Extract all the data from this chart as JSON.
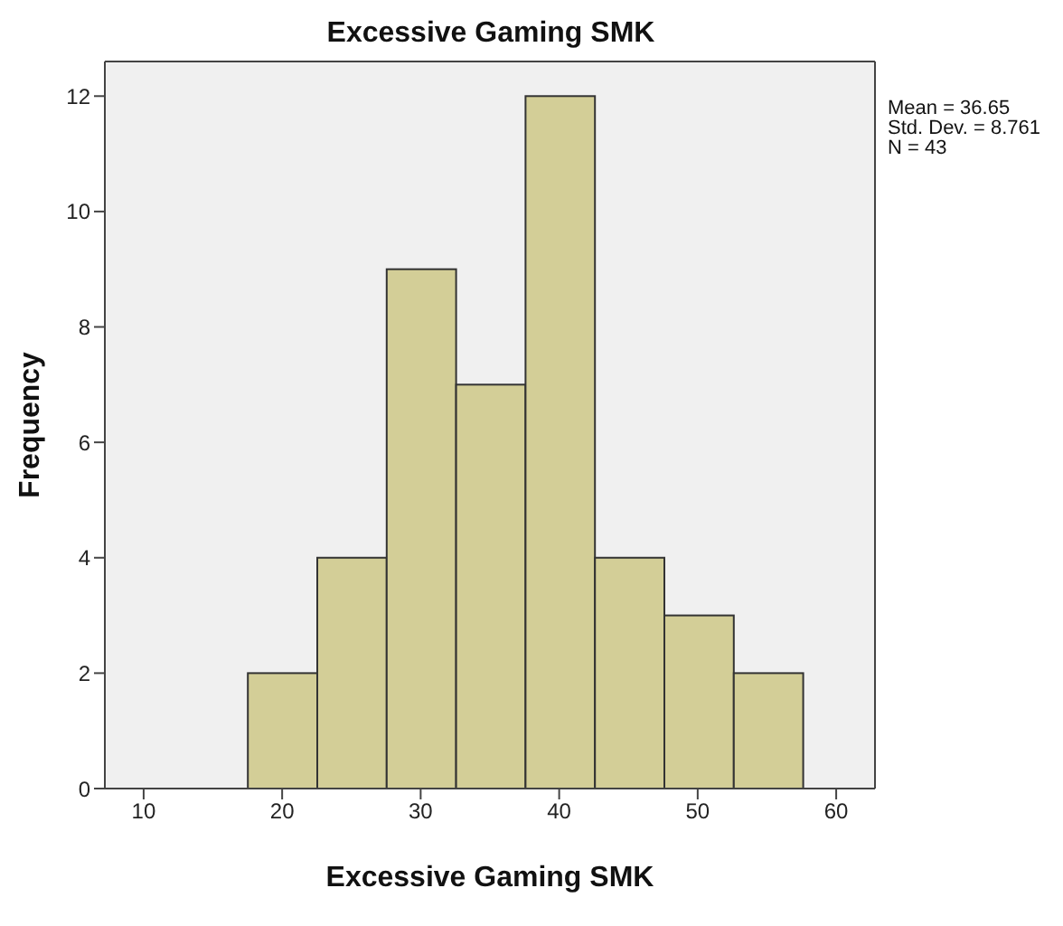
{
  "chart_data": {
    "type": "histogram",
    "title": "Excessive Gaming SMK",
    "xlabel": "Excessive Gaming SMK",
    "ylabel": "Frequency",
    "bins": [
      17.5,
      22.5,
      27.5,
      32.5,
      37.5,
      42.5,
      47.5,
      52.5,
      57.5
    ],
    "values": [
      2,
      4,
      9,
      7,
      12,
      4,
      3,
      2
    ],
    "color": "#d3ce97",
    "xlim": [
      7.2,
      62.8
    ],
    "xticks": [
      10,
      20,
      30,
      40,
      50,
      60
    ],
    "ylim": [
      0,
      12.6
    ],
    "yticks": [
      0,
      2,
      4,
      6,
      8,
      10,
      12
    ],
    "annotations": [
      "Mean = 36.65",
      "Std. Dev. = 8.761",
      "N = 43"
    ]
  }
}
